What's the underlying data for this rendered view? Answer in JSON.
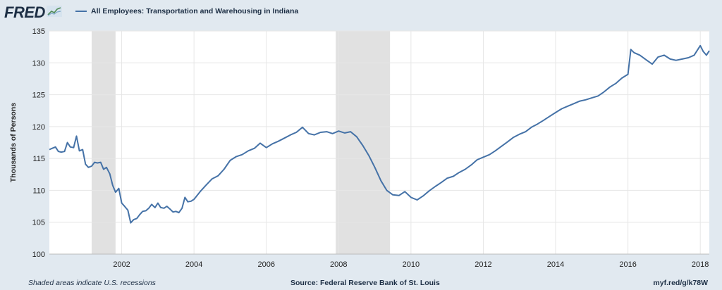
{
  "header": {
    "logo_text": "FRED",
    "logo_icon": "chart-trend-icon",
    "legend_label": "All Employees: Transportation and Warehousing in Indiana",
    "series_color": "#4572a7"
  },
  "footer": {
    "note": "Shaded areas indicate U.S. recessions",
    "source": "Source: Federal Reserve Bank of St. Louis",
    "link": "myf.red/g/k78W"
  },
  "chart_data": {
    "type": "line",
    "title": "",
    "xlabel": "",
    "ylabel": "Thousands of Persons",
    "xlim": [
      2000.0,
      2018.25
    ],
    "ylim": [
      100,
      135
    ],
    "y_ticks": [
      100,
      105,
      110,
      115,
      120,
      125,
      130,
      135
    ],
    "x_ticks": [
      2002,
      2004,
      2006,
      2008,
      2010,
      2012,
      2014,
      2016,
      2018
    ],
    "grid": true,
    "legend_position": "top-left",
    "recessions": [
      [
        2001.17,
        2001.83
      ],
      [
        2007.92,
        2009.42
      ]
    ],
    "series": [
      {
        "name": "All Employees: Transportation and Warehousing in Indiana",
        "color": "#4572a7",
        "x": [
          2000.0,
          2000.08,
          2000.17,
          2000.25,
          2000.33,
          2000.42,
          2000.5,
          2000.58,
          2000.67,
          2000.75,
          2000.83,
          2000.92,
          2001.0,
          2001.08,
          2001.17,
          2001.25,
          2001.33,
          2001.42,
          2001.5,
          2001.58,
          2001.67,
          2001.75,
          2001.83,
          2001.92,
          2002.0,
          2002.08,
          2002.17,
          2002.25,
          2002.33,
          2002.42,
          2002.5,
          2002.58,
          2002.67,
          2002.75,
          2002.83,
          2002.92,
          2003.0,
          2003.08,
          2003.17,
          2003.25,
          2003.33,
          2003.42,
          2003.5,
          2003.58,
          2003.67,
          2003.75,
          2003.83,
          2003.92,
          2004.0,
          2004.17,
          2004.33,
          2004.5,
          2004.67,
          2004.83,
          2005.0,
          2005.17,
          2005.33,
          2005.5,
          2005.67,
          2005.83,
          2006.0,
          2006.17,
          2006.33,
          2006.5,
          2006.67,
          2006.83,
          2007.0,
          2007.17,
          2007.33,
          2007.5,
          2007.67,
          2007.83,
          2008.0,
          2008.17,
          2008.33,
          2008.5,
          2008.67,
          2008.83,
          2009.0,
          2009.17,
          2009.33,
          2009.5,
          2009.67,
          2009.83,
          2010.0,
          2010.17,
          2010.33,
          2010.5,
          2010.67,
          2010.83,
          2011.0,
          2011.17,
          2011.33,
          2011.5,
          2011.67,
          2011.83,
          2012.0,
          2012.17,
          2012.33,
          2012.5,
          2012.67,
          2012.83,
          2013.0,
          2013.17,
          2013.33,
          2013.5,
          2013.67,
          2013.83,
          2014.0,
          2014.17,
          2014.33,
          2014.5,
          2014.67,
          2014.83,
          2015.0,
          2015.17,
          2015.33,
          2015.5,
          2015.67,
          2015.83,
          2016.0,
          2016.08,
          2016.17,
          2016.33,
          2016.5,
          2016.67,
          2016.83,
          2017.0,
          2017.17,
          2017.33,
          2017.5,
          2017.67,
          2017.83,
          2018.0,
          2018.08,
          2018.17,
          2018.25
        ],
        "values": [
          116.4,
          116.6,
          116.8,
          116.1,
          116.0,
          116.1,
          117.5,
          116.8,
          116.7,
          118.5,
          116.2,
          116.4,
          114.1,
          113.6,
          113.8,
          114.4,
          114.3,
          114.4,
          113.3,
          113.6,
          112.6,
          110.8,
          109.7,
          110.3,
          108.0,
          107.5,
          106.9,
          104.9,
          105.4,
          105.6,
          106.2,
          106.7,
          106.8,
          107.2,
          107.8,
          107.3,
          108.0,
          107.3,
          107.2,
          107.5,
          107.1,
          106.6,
          106.7,
          106.5,
          107.2,
          108.9,
          108.2,
          108.3,
          108.6,
          109.8,
          110.8,
          111.8,
          112.3,
          113.3,
          114.7,
          115.3,
          115.6,
          116.2,
          116.6,
          117.4,
          116.7,
          117.3,
          117.7,
          118.2,
          118.7,
          119.1,
          119.9,
          118.9,
          118.7,
          119.1,
          119.2,
          118.9,
          119.3,
          119.0,
          119.2,
          118.4,
          117.0,
          115.5,
          113.6,
          111.5,
          110.0,
          109.3,
          109.2,
          109.8,
          108.9,
          108.5,
          109.1,
          109.9,
          110.6,
          111.2,
          111.9,
          112.2,
          112.8,
          113.3,
          114.0,
          114.8,
          115.2,
          115.6,
          116.2,
          116.9,
          117.6,
          118.3,
          118.8,
          119.2,
          119.9,
          120.4,
          121.0,
          121.6,
          122.2,
          122.8,
          123.2,
          123.6,
          124.0,
          124.2,
          124.5,
          124.8,
          125.4,
          126.2,
          126.8,
          127.6,
          128.2,
          132.1,
          131.6,
          131.2,
          130.5,
          129.8,
          130.9,
          131.2,
          130.6,
          130.4,
          130.6,
          130.8,
          131.2,
          132.7,
          131.8,
          131.2,
          131.9
        ]
      }
    ]
  }
}
